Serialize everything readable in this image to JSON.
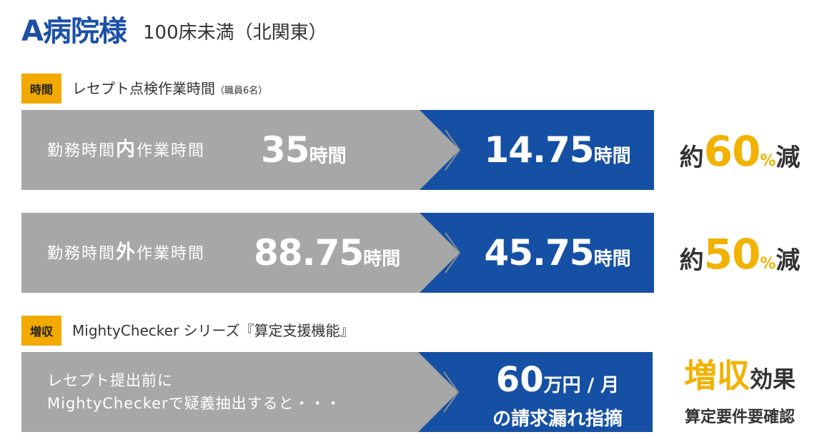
{
  "header": {
    "hospital_name": "A病院様",
    "hospital_info": "100床未満（北関東）"
  },
  "section_time": {
    "tag": "時間",
    "title": "レセプト点検作業時間",
    "note": "（職員6名）"
  },
  "row_inside": {
    "label_pre": "勤務時間",
    "label_em": "内",
    "label_post": "作業時間",
    "before_value": "35",
    "before_unit": "時間",
    "after_value": "14.75",
    "after_unit": "時間",
    "result_pre": "約",
    "result_num": "60",
    "result_pct": "%",
    "result_post": "減"
  },
  "row_outside": {
    "label_pre": "勤務時間",
    "label_em": "外",
    "label_post": "作業時間",
    "before_value": "88.75",
    "before_unit": "時間",
    "after_value": "45.75",
    "after_unit": "時間",
    "result_pre": "約",
    "result_num": "50",
    "result_pct": "%",
    "result_post": "減"
  },
  "section_revenue": {
    "tag": "増収",
    "title": "MightyChecker シリーズ『算定支援機能』"
  },
  "row_revenue": {
    "label_line1": "レセプト提出前に",
    "label_line2": "MightyCheckerで疑義抽出すると・・・",
    "after_num": "60",
    "after_unit": "万円 / 月",
    "after_line2": "の請求漏れ指摘",
    "effect_em": "増収",
    "effect_rest": "効果",
    "effect_sub": "算定要件要確認"
  },
  "colors": {
    "brand_blue": "#1c50a6",
    "bar_blue": "#1550a5",
    "bar_grey": "#a7a7a7",
    "accent_yellow": "#f2b200",
    "tag_orange": "#f2a900"
  }
}
